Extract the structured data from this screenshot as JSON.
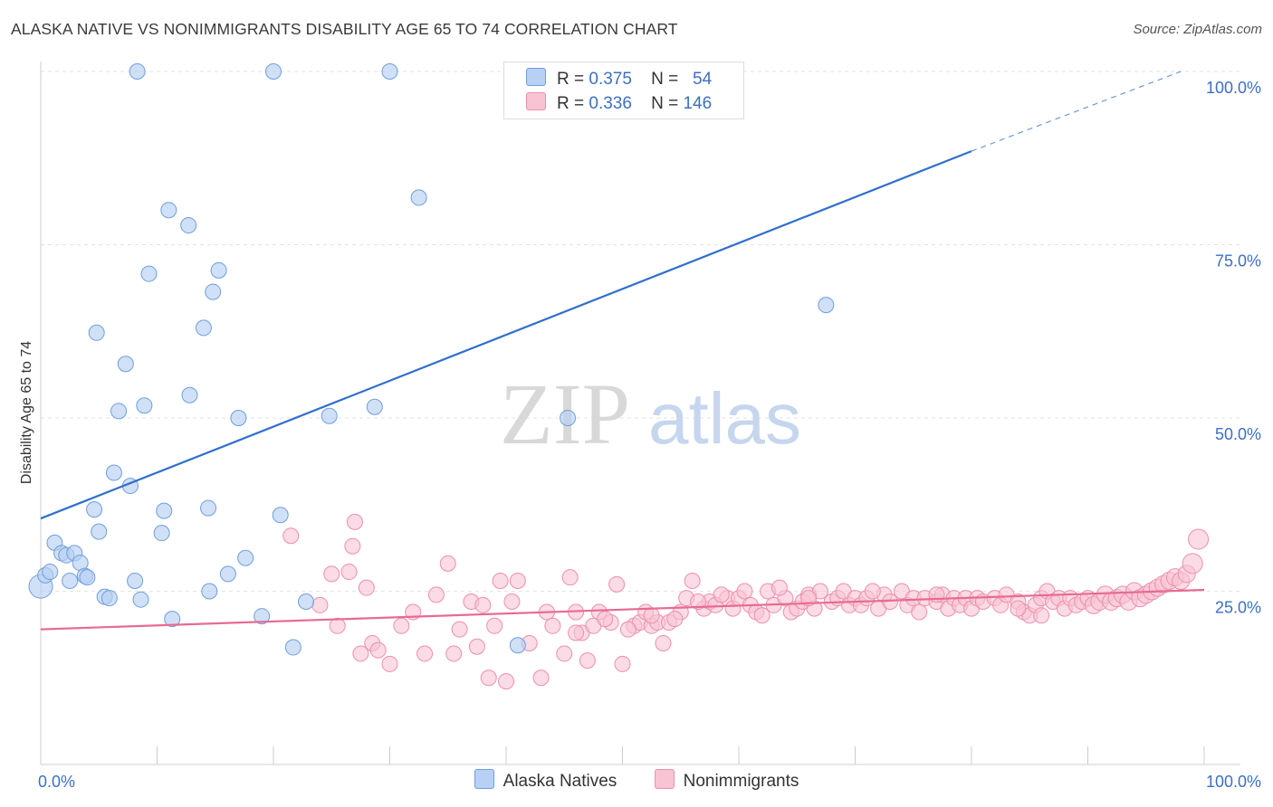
{
  "title": "ALASKA NATIVE VS NONIMMIGRANTS DISABILITY AGE 65 TO 74 CORRELATION CHART",
  "source": "Source: ZipAtlas.com",
  "watermark": {
    "zip": "ZIP",
    "atlas": "atlas"
  },
  "legend": {
    "alaska": {
      "r_label": "R =",
      "r_value": "0.375",
      "n_label": "N =",
      "n_value": "54"
    },
    "nonimm": {
      "r_label": "R =",
      "r_value": "0.336",
      "n_label": "N =",
      "n_value": "146"
    }
  },
  "chart_data": {
    "type": "scatter",
    "ylabel": "Disability Age 65 to 74",
    "xlim": [
      0,
      100
    ],
    "ylim": [
      0,
      100
    ],
    "x_tick_labels": [
      "0.0%",
      "100.0%"
    ],
    "y_ticks": [
      25,
      50,
      75,
      100
    ],
    "y_tick_labels": [
      "25.0%",
      "50.0%",
      "75.0%",
      "100.0%"
    ],
    "colors": {
      "alaska_fill": "#b7d0f3",
      "alaska_stroke": "#6f9fdc",
      "alaska_line": "#2f6fcc",
      "nonimm_fill": "#f8c3d3",
      "nonimm_stroke": "#ec8fac",
      "nonimm_line": "#e76b93",
      "value_text": "#3d6fc4"
    },
    "series": [
      {
        "name": "Alaska Natives",
        "trend": {
          "x0": 0,
          "y0": 35.5,
          "x1": 80,
          "y1": 88.5,
          "dash_to_x": 98,
          "dash_to_y": 100
        },
        "points": [
          [
            0,
            25.7
          ],
          [
            0.4,
            27.3
          ],
          [
            0.8,
            27.8
          ],
          [
            1.2,
            32
          ],
          [
            1.8,
            30.5
          ],
          [
            2.2,
            30.2
          ],
          [
            2.5,
            26.5
          ],
          [
            2.9,
            30.5
          ],
          [
            3.4,
            29.1
          ],
          [
            3.8,
            27.2
          ],
          [
            4,
            27
          ],
          [
            4.6,
            36.8
          ],
          [
            4.8,
            62.3
          ],
          [
            5,
            33.6
          ],
          [
            5.5,
            24.2
          ],
          [
            5.9,
            24
          ],
          [
            6.3,
            42.1
          ],
          [
            6.7,
            51
          ],
          [
            7.3,
            57.8
          ],
          [
            7.7,
            40.2
          ],
          [
            8.1,
            26.5
          ],
          [
            8.3,
            100
          ],
          [
            8.6,
            23.8
          ],
          [
            8.9,
            51.8
          ],
          [
            9.3,
            70.8
          ],
          [
            10.4,
            33.4
          ],
          [
            10.6,
            36.6
          ],
          [
            11,
            80
          ],
          [
            11.3,
            21
          ],
          [
            12.7,
            77.8
          ],
          [
            12.8,
            53.3
          ],
          [
            14,
            63
          ],
          [
            14.4,
            37
          ],
          [
            14.5,
            25
          ],
          [
            14.8,
            68.2
          ],
          [
            15.3,
            71.3
          ],
          [
            16.1,
            27.5
          ],
          [
            17,
            50
          ],
          [
            17.6,
            29.8
          ],
          [
            19,
            21.4
          ],
          [
            20,
            100
          ],
          [
            20.6,
            36
          ],
          [
            21.7,
            16.9
          ],
          [
            22.8,
            23.5
          ],
          [
            24.8,
            50.3
          ],
          [
            28.7,
            51.6
          ],
          [
            30,
            100
          ],
          [
            32.5,
            81.8
          ],
          [
            41,
            17.2
          ],
          [
            45.3,
            50
          ],
          [
            48,
            100
          ],
          [
            67.5,
            66.3
          ]
        ]
      },
      {
        "name": "Nonimmigrants",
        "trend": {
          "x0": 0,
          "y0": 19.5,
          "x1": 100,
          "y1": 25.2
        },
        "points": [
          [
            21.5,
            33
          ],
          [
            24,
            23
          ],
          [
            25,
            27.5
          ],
          [
            25.5,
            20
          ],
          [
            26.5,
            27.8
          ],
          [
            27,
            35
          ],
          [
            26.8,
            31.5
          ],
          [
            27.5,
            16
          ],
          [
            28,
            25.5
          ],
          [
            28.5,
            17.5
          ],
          [
            29,
            16.5
          ],
          [
            30,
            14.5
          ],
          [
            31,
            20
          ],
          [
            32,
            22
          ],
          [
            33,
            16
          ],
          [
            34,
            24.5
          ],
          [
            35,
            29
          ],
          [
            35.5,
            16
          ],
          [
            36,
            19.5
          ],
          [
            37,
            23.5
          ],
          [
            37.5,
            17
          ],
          [
            38,
            23
          ],
          [
            38.5,
            12.5
          ],
          [
            39,
            20
          ],
          [
            39.5,
            26.5
          ],
          [
            40,
            12
          ],
          [
            40.5,
            23.5
          ],
          [
            41,
            26.5
          ],
          [
            42,
            17.5
          ],
          [
            43,
            12.5
          ],
          [
            43.5,
            22
          ],
          [
            44,
            20
          ],
          [
            45,
            16
          ],
          [
            45.5,
            27
          ],
          [
            46,
            22
          ],
          [
            46.5,
            19
          ],
          [
            47,
            15
          ],
          [
            47.5,
            20
          ],
          [
            48,
            22
          ],
          [
            49,
            20.5
          ],
          [
            49.5,
            26
          ],
          [
            50,
            14.5
          ],
          [
            51,
            20
          ],
          [
            51.5,
            20.5
          ],
          [
            52,
            22
          ],
          [
            52.5,
            20
          ],
          [
            53,
            20.5
          ],
          [
            53.5,
            17.5
          ],
          [
            54,
            20.5
          ],
          [
            55,
            22
          ],
          [
            55.5,
            24
          ],
          [
            56,
            26.5
          ],
          [
            57,
            22.5
          ],
          [
            57.5,
            23.5
          ],
          [
            58,
            23
          ],
          [
            59,
            24
          ],
          [
            59.5,
            22.5
          ],
          [
            60,
            24
          ],
          [
            61,
            23
          ],
          [
            61.5,
            22
          ],
          [
            62,
            21.5
          ],
          [
            62.5,
            25
          ],
          [
            63,
            23
          ],
          [
            64,
            24
          ],
          [
            64.5,
            22
          ],
          [
            65,
            22.5
          ],
          [
            65.5,
            23.5
          ],
          [
            66,
            24.5
          ],
          [
            66.5,
            22.5
          ],
          [
            67,
            25
          ],
          [
            68,
            23.5
          ],
          [
            68.5,
            24
          ],
          [
            69,
            25
          ],
          [
            69.5,
            23
          ],
          [
            70,
            24
          ],
          [
            70.5,
            23
          ],
          [
            71,
            24
          ],
          [
            72,
            22.5
          ],
          [
            72.5,
            24.5
          ],
          [
            73,
            23.5
          ],
          [
            74,
            25
          ],
          [
            74.5,
            23
          ],
          [
            75,
            24
          ],
          [
            75.5,
            22
          ],
          [
            76,
            24
          ],
          [
            77,
            23.5
          ],
          [
            77.5,
            24.5
          ],
          [
            78,
            22.5
          ],
          [
            78.5,
            24
          ],
          [
            79,
            23
          ],
          [
            79.5,
            24
          ],
          [
            80,
            22.5
          ],
          [
            80.5,
            24
          ],
          [
            81,
            23.5
          ],
          [
            82,
            24
          ],
          [
            82.5,
            23
          ],
          [
            83,
            24.5
          ],
          [
            84,
            23.5
          ],
          [
            84.5,
            22
          ],
          [
            85,
            21.5
          ],
          [
            85.5,
            23
          ],
          [
            86,
            24
          ],
          [
            86.5,
            25
          ],
          [
            87,
            23.5
          ],
          [
            87.5,
            24
          ],
          [
            88,
            22.5
          ],
          [
            88.5,
            24
          ],
          [
            89,
            23
          ],
          [
            89.5,
            23.5
          ],
          [
            90,
            24
          ],
          [
            90.5,
            23
          ],
          [
            91,
            23.5
          ],
          [
            91.5,
            24.5
          ],
          [
            92,
            23.5
          ],
          [
            92.5,
            24
          ],
          [
            93,
            24.5
          ],
          [
            93.5,
            23.5
          ],
          [
            94,
            25
          ],
          [
            94.5,
            24
          ],
          [
            95,
            24.5
          ],
          [
            95.5,
            25
          ],
          [
            96,
            25.5
          ],
          [
            96.5,
            26
          ],
          [
            97,
            26.5
          ],
          [
            97.5,
            27
          ],
          [
            98,
            26.5
          ],
          [
            98.5,
            27.5
          ],
          [
            99,
            29
          ],
          [
            99.5,
            32.5
          ],
          [
            86,
            21.5
          ],
          [
            84,
            22.5
          ],
          [
            77,
            24.5
          ],
          [
            71.5,
            25
          ],
          [
            66,
            24
          ],
          [
            63.5,
            25.5
          ],
          [
            60.5,
            25
          ],
          [
            58.5,
            24.5
          ],
          [
            56.5,
            23.5
          ],
          [
            54.5,
            21
          ],
          [
            52.5,
            21.5
          ],
          [
            50.5,
            19.5
          ],
          [
            48.5,
            21
          ],
          [
            46,
            19
          ]
        ]
      }
    ]
  }
}
